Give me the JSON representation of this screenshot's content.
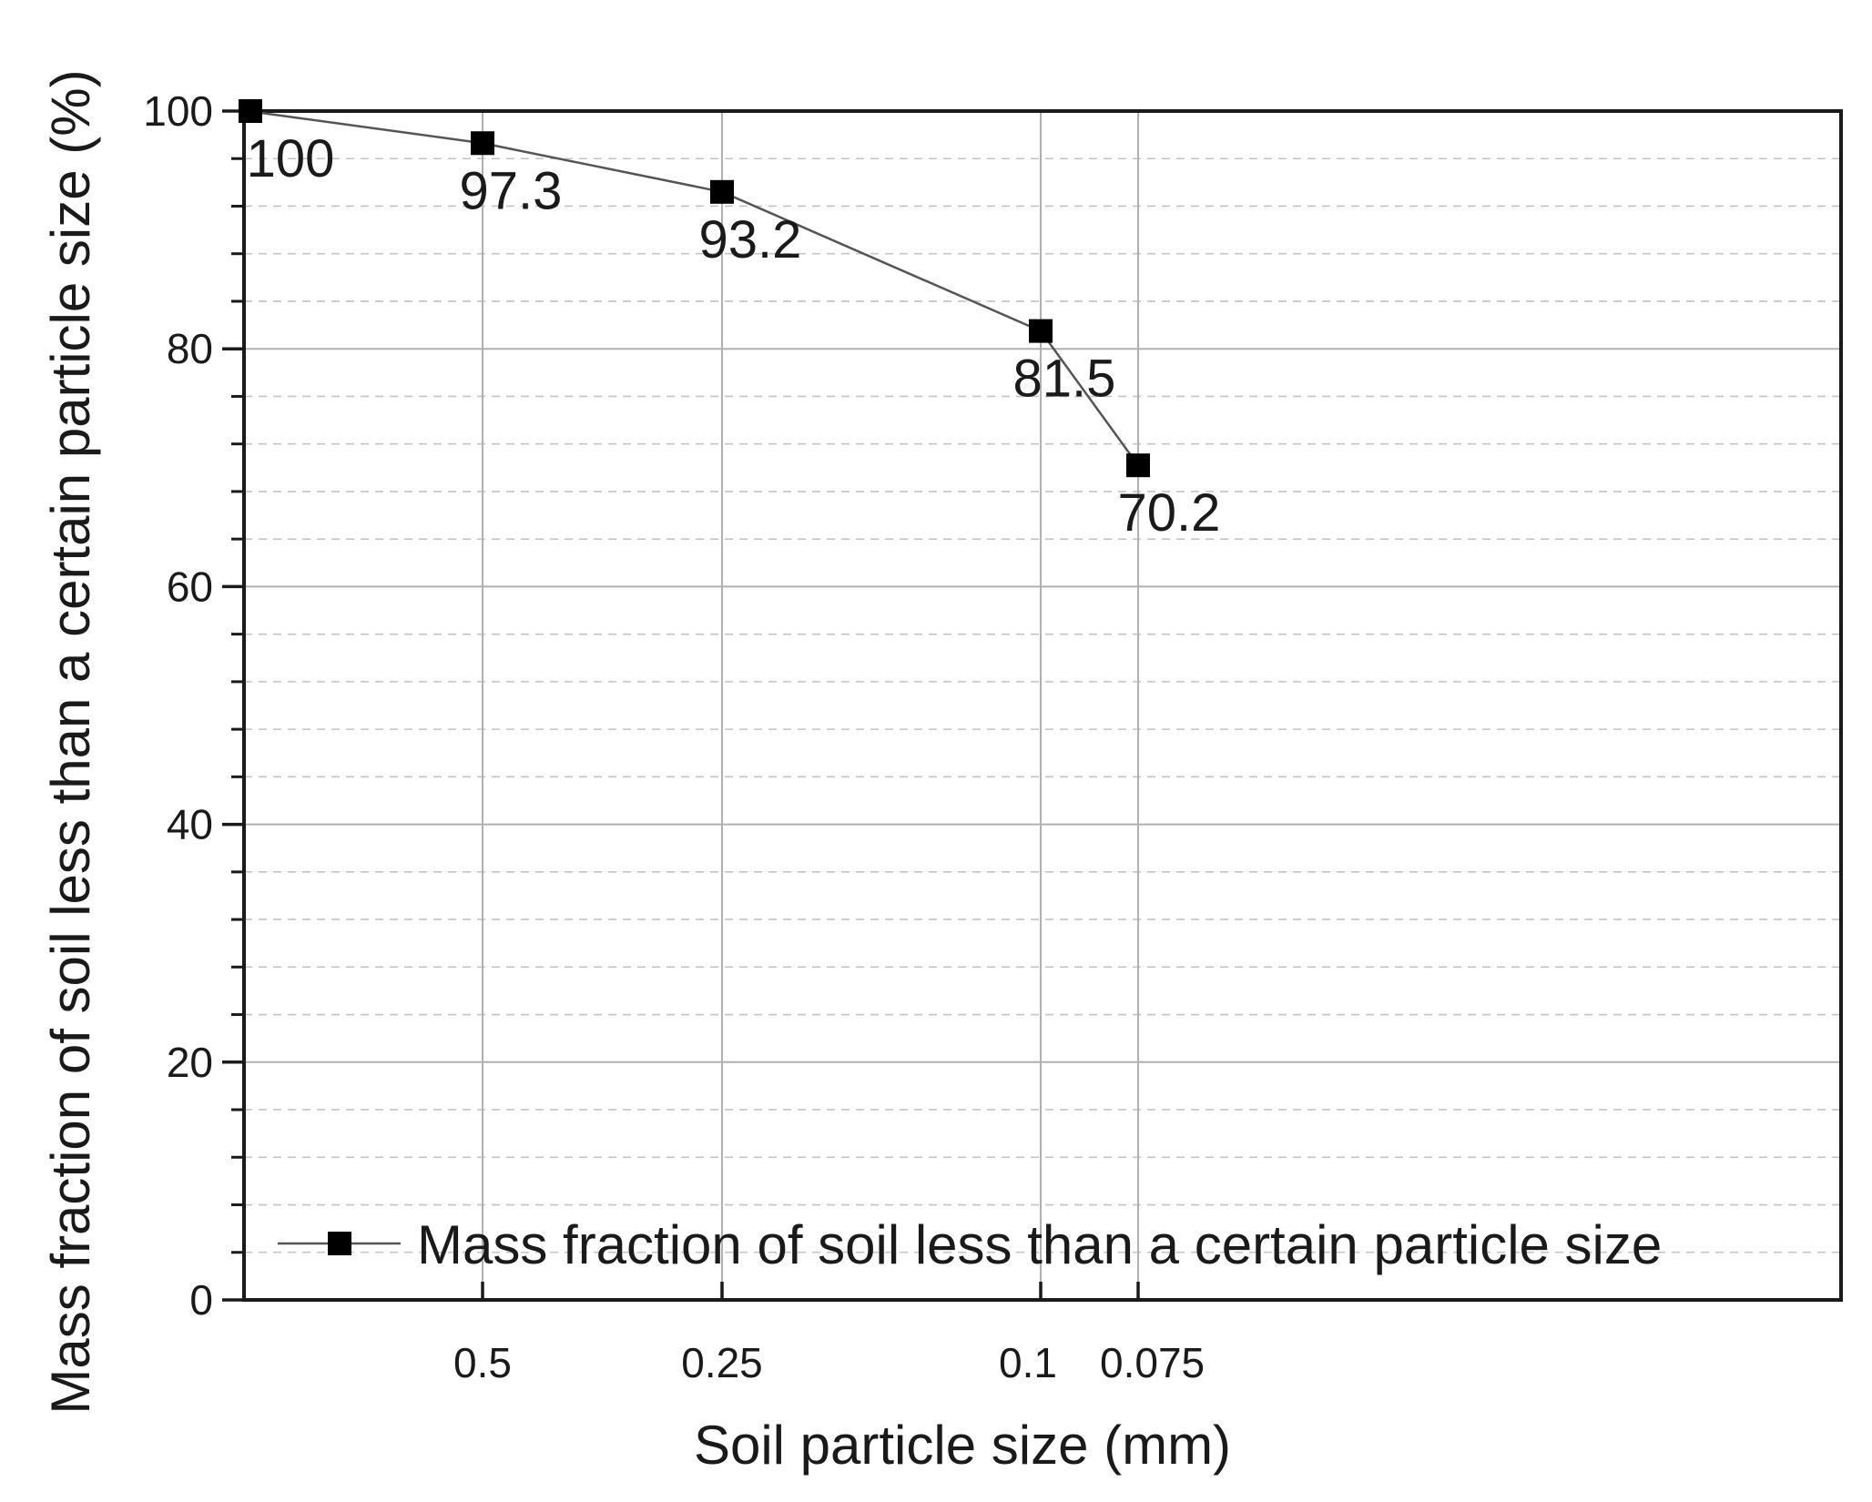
{
  "chart_data": {
    "type": "line",
    "title": "",
    "xlabel": "Soil particle size (mm)",
    "ylabel": "Mass fraction of soil less than a certain particle size (%)",
    "ylim": [
      0,
      100
    ],
    "y_major_ticks": [
      0,
      20,
      40,
      60,
      80,
      100
    ],
    "y_minor_step": 4,
    "x_tick_labels": [
      "0.5",
      "0.25",
      "0.1",
      "0.075"
    ],
    "grid": true,
    "legend_position": "bottom-left",
    "series": [
      {
        "name": "Mass fraction of soil less than a certain particle size",
        "marker": "square",
        "color": "#000000",
        "line_color": "#555555",
        "points": [
          {
            "x": null,
            "y": 100,
            "label": "100"
          },
          {
            "x": 0.5,
            "y": 97.3,
            "label": "97.3"
          },
          {
            "x": 0.25,
            "y": 93.2,
            "label": "93.2"
          },
          {
            "x": 0.1,
            "y": 81.5,
            "label": "81.5"
          },
          {
            "x": 0.075,
            "y": 70.2,
            "label": "70.2"
          }
        ]
      }
    ]
  }
}
